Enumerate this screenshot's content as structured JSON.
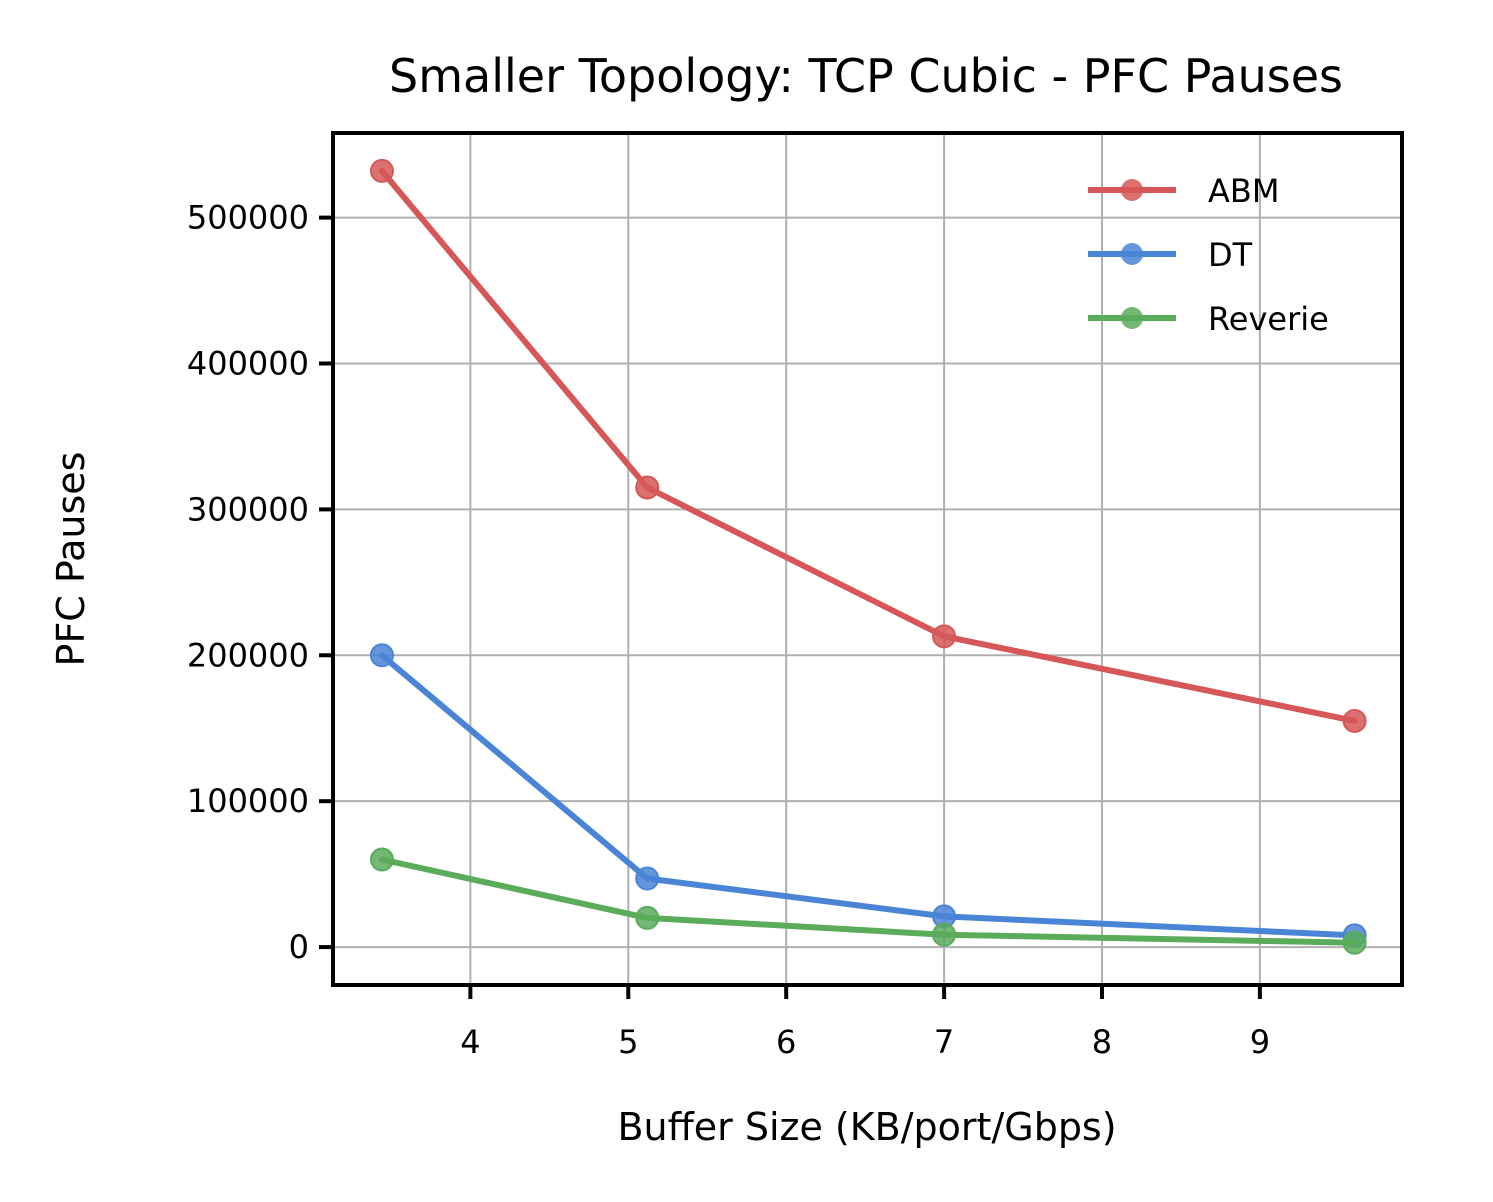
{
  "chart_data": {
    "type": "line",
    "title": "Smaller Topology: TCP Cubic - PFC Pauses",
    "xlabel": "Buffer Size (KB/port/Gbps)",
    "ylabel": "PFC Pauses",
    "xlim": [
      3.13,
      9.9
    ],
    "ylim": [
      -26000,
      558000
    ],
    "x_ticks": [
      4,
      5,
      6,
      7,
      8,
      9
    ],
    "y_ticks": [
      0,
      100000,
      200000,
      300000,
      400000,
      500000
    ],
    "grid": true,
    "legend_position": "top-right",
    "x": [
      3.44,
      5.12,
      7.0,
      9.6
    ],
    "series": [
      {
        "name": "ABM",
        "color": "#d55757",
        "values": [
          532000,
          315000,
          213000,
          155000
        ]
      },
      {
        "name": "DT",
        "color": "#4a84d6",
        "values": [
          200000,
          47000,
          21000,
          8000
        ]
      },
      {
        "name": "Reverie",
        "color": "#5aab5a",
        "values": [
          60000,
          20000,
          8500,
          3000
        ]
      }
    ]
  }
}
